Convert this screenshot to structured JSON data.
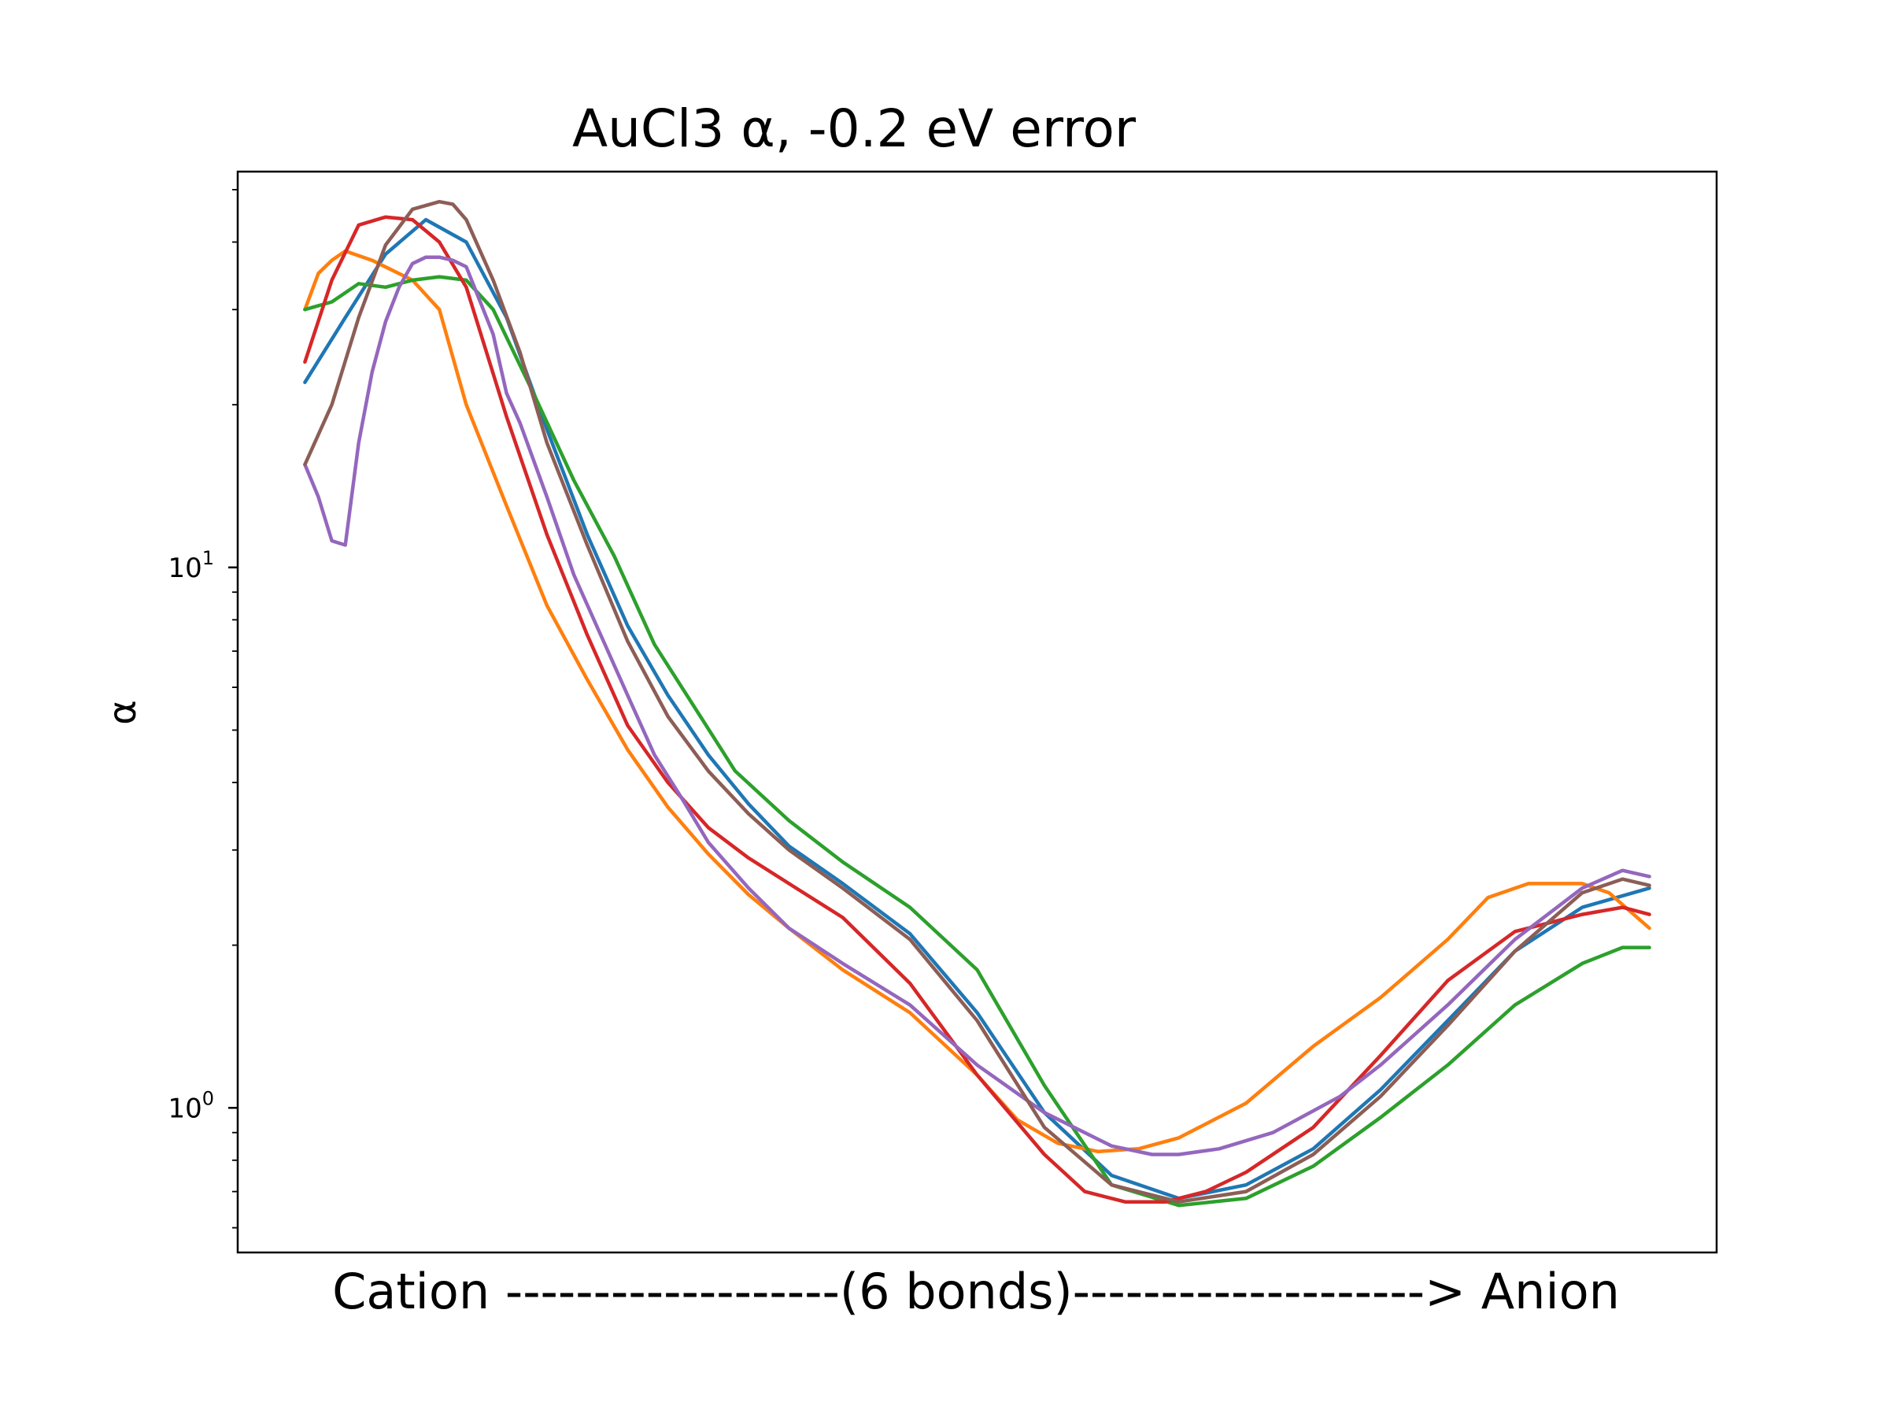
{
  "chart_data": {
    "type": "line",
    "title": "AuCl3 α, -0.2 eV error",
    "xlabel": "Cation -------------------(6 bonds)--------------------> Anion",
    "ylabel": "α",
    "yscale": "log",
    "ylim": [
      0.54,
      54
    ],
    "xlim": [
      -5,
      105
    ],
    "grid": false,
    "y_tick_labels": [
      {
        "value": 1,
        "base": "10",
        "exp": "0"
      },
      {
        "value": 10,
        "base": "10",
        "exp": "1"
      }
    ],
    "series": [
      {
        "color": "#1f77b4",
        "x": [
          0,
          3,
          6,
          9,
          12,
          15,
          18,
          21,
          24,
          27,
          30,
          33,
          36,
          40,
          45,
          50,
          55,
          60,
          65,
          70,
          75,
          80,
          85,
          90,
          95,
          100
        ],
        "y": [
          22,
          29,
          38,
          44,
          40,
          29,
          18,
          11.5,
          7.8,
          5.8,
          4.5,
          3.65,
          3.05,
          2.6,
          2.1,
          1.5,
          0.98,
          0.75,
          0.68,
          0.72,
          0.84,
          1.08,
          1.45,
          1.95,
          2.35,
          2.55
        ]
      },
      {
        "color": "#ff7f0e",
        "x": [
          0,
          1,
          2,
          3,
          5,
          8,
          10,
          12,
          15,
          18,
          21,
          24,
          27,
          30,
          33,
          36,
          40,
          45,
          50,
          53,
          56,
          59,
          62,
          65,
          70,
          75,
          80,
          85,
          88,
          91,
          95,
          97,
          100
        ],
        "y": [
          30,
          35,
          37,
          38.5,
          37,
          34,
          30,
          20,
          13,
          8.5,
          6.2,
          4.6,
          3.6,
          2.95,
          2.48,
          2.15,
          1.8,
          1.5,
          1.15,
          0.95,
          0.86,
          0.83,
          0.84,
          0.88,
          1.02,
          1.3,
          1.6,
          2.05,
          2.45,
          2.6,
          2.6,
          2.5,
          2.15
        ]
      },
      {
        "color": "#2ca02c",
        "x": [
          0,
          2,
          4,
          6,
          8,
          10,
          12,
          14,
          17,
          20,
          23,
          26,
          29,
          32,
          36,
          40,
          45,
          50,
          55,
          60,
          65,
          70,
          75,
          80,
          85,
          90,
          95,
          98,
          100
        ],
        "y": [
          30,
          31,
          33.5,
          33,
          34,
          34.5,
          34,
          30,
          21,
          14.5,
          10.5,
          7.2,
          5.5,
          4.2,
          3.4,
          2.85,
          2.35,
          1.8,
          1.1,
          0.72,
          0.66,
          0.68,
          0.78,
          0.96,
          1.2,
          1.55,
          1.85,
          1.98,
          1.98
        ]
      },
      {
        "color": "#d62728",
        "x": [
          0,
          2,
          4,
          6,
          8,
          10,
          12,
          15,
          18,
          21,
          24,
          27,
          30,
          33,
          36,
          40,
          45,
          50,
          55,
          58,
          61,
          64,
          67,
          70,
          75,
          80,
          85,
          90,
          95,
          98,
          100
        ],
        "y": [
          24,
          34,
          43,
          44.5,
          44,
          40,
          33,
          19,
          11.5,
          7.5,
          5.1,
          4.0,
          3.3,
          2.9,
          2.6,
          2.25,
          1.7,
          1.15,
          0.82,
          0.7,
          0.67,
          0.67,
          0.7,
          0.76,
          0.92,
          1.25,
          1.72,
          2.12,
          2.28,
          2.35,
          2.28
        ]
      },
      {
        "color": "#9467bd",
        "x": [
          0,
          1,
          2,
          3,
          4,
          5,
          6,
          7,
          8,
          9,
          10,
          11,
          12,
          14,
          15,
          16,
          18,
          20,
          22,
          24,
          26,
          28,
          30,
          33,
          36,
          40,
          45,
          50,
          55,
          60,
          63,
          65,
          68,
          72,
          77,
          80,
          85,
          90,
          95,
          98,
          100
        ],
        "y": [
          15.5,
          13.5,
          11.2,
          11,
          17,
          23,
          28.5,
          33,
          36.5,
          37.5,
          37.5,
          37,
          36,
          27,
          21,
          18.5,
          13.5,
          9.7,
          7.5,
          5.8,
          4.5,
          3.75,
          3.1,
          2.55,
          2.15,
          1.85,
          1.55,
          1.2,
          0.98,
          0.85,
          0.82,
          0.82,
          0.84,
          0.9,
          1.05,
          1.2,
          1.55,
          2.05,
          2.55,
          2.75,
          2.68
        ]
      },
      {
        "color": "#8c5e56",
        "x": [
          0,
          2,
          4,
          6,
          8,
          10,
          11,
          12,
          14,
          16,
          18,
          21,
          24,
          27,
          30,
          33,
          36,
          40,
          45,
          50,
          55,
          60,
          65,
          70,
          75,
          80,
          85,
          90,
          95,
          98,
          100
        ],
        "y": [
          15.5,
          20,
          29,
          39.5,
          46,
          47.5,
          47,
          44,
          34,
          25,
          17,
          11,
          7.3,
          5.3,
          4.2,
          3.5,
          3.0,
          2.55,
          2.05,
          1.45,
          0.92,
          0.72,
          0.67,
          0.7,
          0.82,
          1.05,
          1.42,
          1.95,
          2.5,
          2.65,
          2.58
        ]
      }
    ]
  }
}
